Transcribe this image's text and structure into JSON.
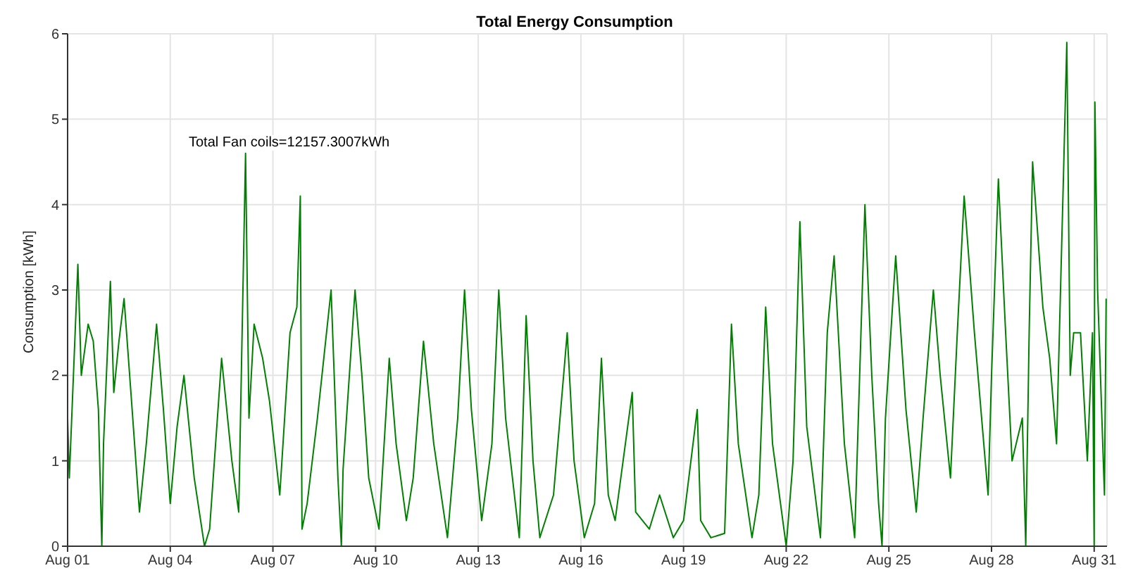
{
  "chart_data": {
    "type": "line",
    "title": "Total Energy Consumption",
    "ylabel": "Consumption [kWh]",
    "annotations": [
      "Total Fan coils=12157.3007kWh"
    ],
    "x": [
      "--08-01T00:00",
      "--08-01T01:12",
      "--08-01T04:48",
      "--08-01T07:12",
      "--08-01T09:36",
      "--08-01T14:24",
      "--08-01T18:00",
      "--08-01T21:36",
      "--08-02T00:00",
      "--08-02T01:12",
      "--08-02T06:00",
      "--08-02T08:24",
      "--08-02T12:00",
      "--08-02T15:36",
      "--08-02T20:24",
      "--08-03T02:24",
      "--08-03T07:12",
      "--08-03T14:24",
      "--08-03T19:12",
      "--08-04T00:00",
      "--08-04T04:48",
      "--08-04T09:36",
      "--08-04T16:48",
      "--08-05T00:00",
      "--08-05T03:36",
      "--08-05T12:00",
      "--08-05T19:12",
      "--08-06T00:00",
      "--08-06T04:48",
      "--08-06T07:12",
      "--08-06T10:48",
      "--08-06T16:48",
      "--08-06T21:36",
      "--08-07T04:48",
      "--08-07T12:00",
      "--08-07T16:48",
      "--08-07T19:12",
      "--08-07T20:24",
      "--08-08T00:00",
      "--08-08T07:12",
      "--08-08T16:48",
      "--08-08T21:36",
      "--08-09T00:00",
      "--08-09T01:12",
      "--08-09T09:36",
      "--08-09T14:24",
      "--08-09T19:12",
      "--08-10T02:24",
      "--08-10T09:36",
      "--08-10T14:24",
      "--08-10T21:36",
      "--08-11T02:24",
      "--08-11T09:36",
      "--08-11T16:48",
      "--08-12T02:24",
      "--08-12T09:36",
      "--08-12T14:24",
      "--08-12T19:12",
      "--08-13T02:24",
      "--08-13T09:36",
      "--08-13T14:24",
      "--08-13T19:12",
      "--08-14T04:48",
      "--08-14T09:36",
      "--08-14T14:24",
      "--08-14T19:12",
      "--08-15T04:48",
      "--08-15T14:24",
      "--08-15T19:12",
      "--08-16T02:24",
      "--08-16T09:36",
      "--08-16T14:24",
      "--08-16T19:12",
      "--08-17T00:00",
      "--08-17T12:00",
      "--08-17T14:24",
      "--08-18T00:00",
      "--08-18T07:12",
      "--08-18T16:48",
      "--08-19T00:00",
      "--08-19T09:36",
      "--08-19T12:00",
      "--08-19T19:12",
      "--08-20T04:48",
      "--08-20T09:36",
      "--08-20T14:24",
      "--08-21T00:00",
      "--08-21T04:48",
      "--08-21T09:36",
      "--08-21T14:24",
      "--08-22T00:00",
      "--08-22T04:48",
      "--08-22T09:36",
      "--08-22T14:24",
      "--08-23T00:00",
      "--08-23T04:48",
      "--08-23T09:36",
      "--08-23T16:48",
      "--08-24T00:00",
      "--08-24T07:12",
      "--08-24T12:00",
      "--08-24T16:48",
      "--08-24T19:12",
      "--08-24T21:36",
      "--08-25T04:48",
      "--08-25T12:00",
      "--08-25T19:12",
      "--08-26T00:00",
      "--08-26T07:12",
      "--08-26T12:00",
      "--08-26T19:12",
      "--08-27T00:00",
      "--08-27T04:48",
      "--08-27T12:00",
      "--08-27T21:36",
      "--08-28T00:00",
      "--08-28T04:48",
      "--08-28T09:36",
      "--08-28T14:24",
      "--08-28T21:36",
      "--08-29T00:00",
      "--08-29T02:24",
      "--08-29T04:48",
      "--08-29T12:00",
      "--08-29T16:48",
      "--08-29T21:36",
      "--08-30T02:24",
      "--08-30T04:48",
      "--08-30T07:12",
      "--08-30T09:36",
      "--08-30T14:24",
      "--08-30T19:12",
      "--08-30T22:48",
      "--08-31T00:00",
      "--08-31T00:30",
      "--08-31T02:24",
      "--08-31T07:12",
      "--08-31T08:24"
    ],
    "series": [
      {
        "color": "#008000",
        "values": [
          1.5,
          0.8,
          2.3,
          3.3,
          2.0,
          2.6,
          2.4,
          1.6,
          0.0,
          1.2,
          3.1,
          1.8,
          2.4,
          2.9,
          1.8,
          0.4,
          1.2,
          2.6,
          1.6,
          0.5,
          1.4,
          2.0,
          0.8,
          0.0,
          0.2,
          2.2,
          1.0,
          0.4,
          4.6,
          1.5,
          2.6,
          2.2,
          1.7,
          0.6,
          2.5,
          2.8,
          4.1,
          0.2,
          0.5,
          1.5,
          3.0,
          0.8,
          0.0,
          0.9,
          3.0,
          2.0,
          0.8,
          0.2,
          2.2,
          1.2,
          0.3,
          0.8,
          2.4,
          1.2,
          0.1,
          1.5,
          3.0,
          1.6,
          0.3,
          1.2,
          3.0,
          1.5,
          0.1,
          2.7,
          1.0,
          0.1,
          0.6,
          2.5,
          1.0,
          0.1,
          0.5,
          2.2,
          0.6,
          0.3,
          1.8,
          0.4,
          0.2,
          0.6,
          0.1,
          0.3,
          1.6,
          0.3,
          0.1,
          0.15,
          2.6,
          1.2,
          0.1,
          0.6,
          2.8,
          1.2,
          0.0,
          1.0,
          3.8,
          1.4,
          0.1,
          2.5,
          3.4,
          1.2,
          0.1,
          4.0,
          2.0,
          0.5,
          0.0,
          1.5,
          3.4,
          1.6,
          0.4,
          1.5,
          3.0,
          2.0,
          0.8,
          2.5,
          4.1,
          2.5,
          0.6,
          2.0,
          4.3,
          2.6,
          1.0,
          1.5,
          0.0,
          2.5,
          4.5,
          2.8,
          2.2,
          1.2,
          4.3,
          5.9,
          2.0,
          2.5,
          2.5,
          1.0,
          2.5,
          0.0,
          5.2,
          3.0,
          0.6,
          2.9
        ]
      }
    ],
    "xlim": [
      "--08-01T00:00",
      "--08-31T09:00"
    ],
    "xticks": [
      {
        "value": "--08-01",
        "label": "Aug 01"
      },
      {
        "value": "--08-04",
        "label": "Aug 04"
      },
      {
        "value": "--08-07",
        "label": "Aug 07"
      },
      {
        "value": "--08-10",
        "label": "Aug 10"
      },
      {
        "value": "--08-13",
        "label": "Aug 13"
      },
      {
        "value": "--08-16",
        "label": "Aug 16"
      },
      {
        "value": "--08-19",
        "label": "Aug 19"
      },
      {
        "value": "--08-22",
        "label": "Aug 22"
      },
      {
        "value": "--08-25",
        "label": "Aug 25"
      },
      {
        "value": "--08-28",
        "label": "Aug 28"
      },
      {
        "value": "--08-31",
        "label": "Aug 31"
      }
    ],
    "ylim": [
      0,
      6
    ],
    "yticks": [
      0,
      1,
      2,
      3,
      4,
      5,
      6
    ],
    "grid": true,
    "line_style": "solid",
    "marker": "none",
    "legend": false
  }
}
